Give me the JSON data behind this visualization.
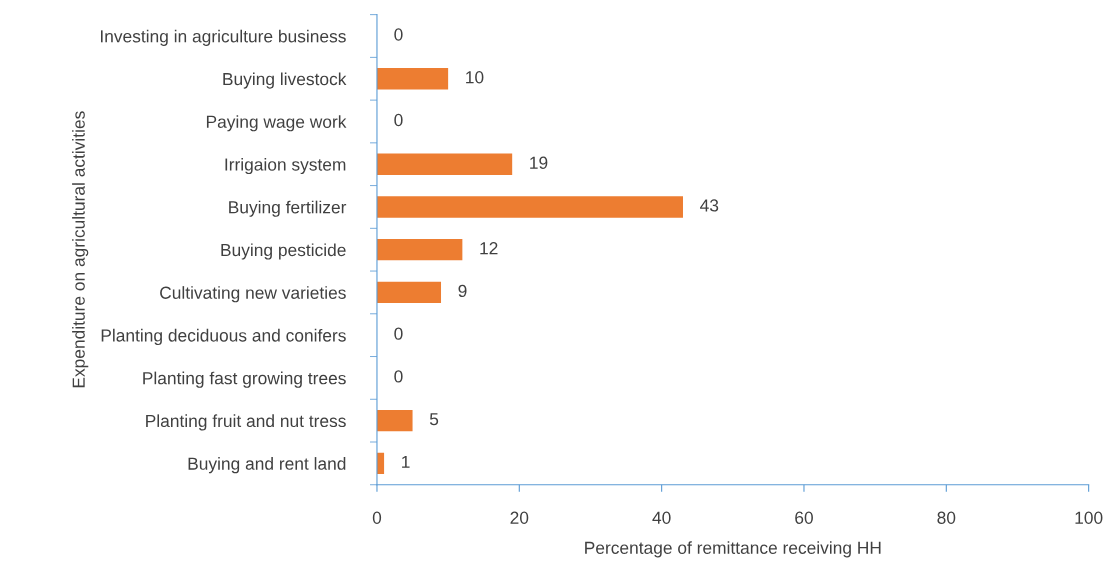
{
  "chart_data": {
    "type": "bar",
    "orientation": "horizontal",
    "categories": [
      "Investing in agriculture business",
      "Buying livestock",
      "Paying wage work",
      "Irrigaion system",
      "Buying fertilizer",
      "Buying pesticide",
      "Cultivating new varieties",
      "Planting deciduous and conifers",
      "Planting fast growing trees",
      "Planting fruit and nut tress",
      "Buying and rent land"
    ],
    "values": [
      0,
      10,
      0,
      19,
      43,
      12,
      9,
      0,
      0,
      5,
      1
    ],
    "color": "#ed7d31",
    "xlabel": "Percentage of remittance receiving HH",
    "ylabel": "Expenditure on agricultural activities",
    "xlim": [
      0,
      100
    ],
    "xticks": [
      0,
      20,
      40,
      60,
      80,
      100
    ],
    "data_labels": true,
    "grid": false
  }
}
